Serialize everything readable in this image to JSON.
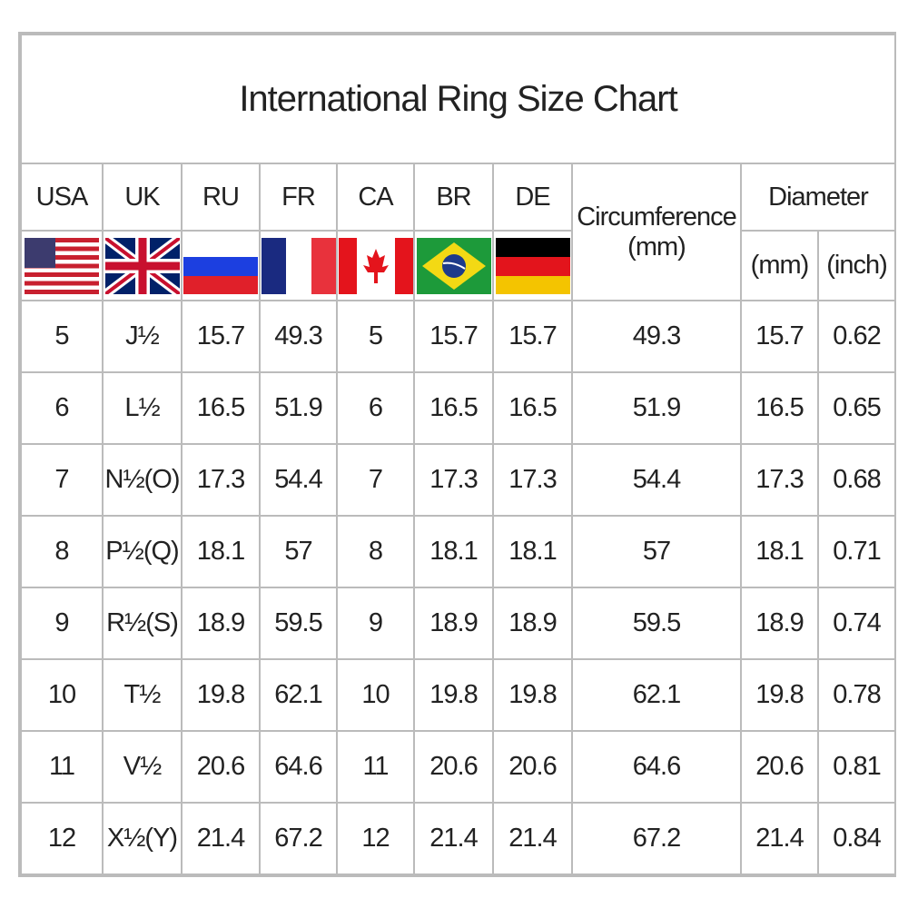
{
  "title": "International Ring Size Chart",
  "headers": {
    "countries": [
      "USA",
      "UK",
      "RU",
      "FR",
      "CA",
      "BR",
      "DE"
    ],
    "circumference": "Circumference",
    "circumference_unit": "(mm)",
    "diameter": "Diameter",
    "diameter_mm": "(mm)",
    "diameter_inch": "(inch)"
  },
  "flags": [
    "us-flag-icon",
    "uk-flag-icon",
    "russia-flag-icon",
    "france-flag-icon",
    "canada-flag-icon",
    "brazil-flag-icon",
    "germany-flag-icon"
  ],
  "rows": [
    [
      "5",
      "J½",
      "15.7",
      "49.3",
      "5",
      "15.7",
      "15.7",
      "49.3",
      "15.7",
      "0.62"
    ],
    [
      "6",
      "L½",
      "16.5",
      "51.9",
      "6",
      "16.5",
      "16.5",
      "51.9",
      "16.5",
      "0.65"
    ],
    [
      "7",
      "N½(O)",
      "17.3",
      "54.4",
      "7",
      "17.3",
      "17.3",
      "54.4",
      "17.3",
      "0.68"
    ],
    [
      "8",
      "P½(Q)",
      "18.1",
      "57",
      "8",
      "18.1",
      "18.1",
      "57",
      "18.1",
      "0.71"
    ],
    [
      "9",
      "R½(S)",
      "18.9",
      "59.5",
      "9",
      "18.9",
      "18.9",
      "59.5",
      "18.9",
      "0.74"
    ],
    [
      "10",
      "T½",
      "19.8",
      "62.1",
      "10",
      "19.8",
      "19.8",
      "62.1",
      "19.8",
      "0.78"
    ],
    [
      "11",
      "V½",
      "20.6",
      "64.6",
      "11",
      "20.6",
      "20.6",
      "64.6",
      "20.6",
      "0.81"
    ],
    [
      "12",
      "X½(Y)",
      "21.4",
      "67.2",
      "12",
      "21.4",
      "21.4",
      "67.2",
      "21.4",
      "0.84"
    ]
  ]
}
